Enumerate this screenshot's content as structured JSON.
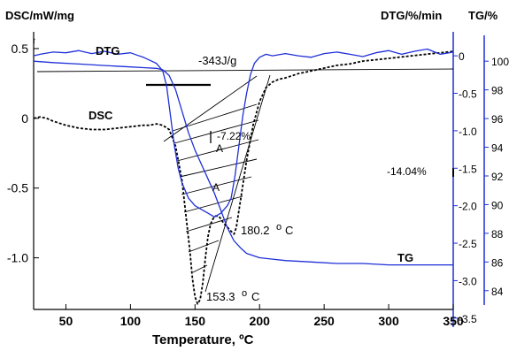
{
  "chart_data": {
    "type": "line",
    "axes": {
      "x": {
        "label": "Temperature, ºC",
        "range": [
          25,
          350
        ],
        "ticks": [
          "50",
          "100",
          "150",
          "200",
          "250",
          "300",
          "350"
        ]
      },
      "y_left": {
        "label": "DSC/mW/mg",
        "range": [
          -1.37,
          0.62
        ],
        "ticks": [
          "0.5",
          "0",
          "-0.5",
          "-1.0"
        ]
      },
      "y_right_dtg": {
        "label": "DTG/%/min",
        "range": [
          -3.62,
          0.32
        ],
        "ticks": [
          "0",
          "-0.5",
          "-1.0",
          "-1.5",
          "-2.0",
          "-2.5",
          "-3.0",
          "-3.5"
        ]
      },
      "y_right_tg": {
        "label": "TG/%",
        "range": [
          83.0,
          101.8
        ],
        "ticks": [
          "100",
          "98",
          "96",
          "94",
          "92",
          "90",
          "88",
          "86",
          "84"
        ]
      }
    },
    "series": [
      {
        "name": "DSC",
        "color": "#000000",
        "axis": "y_left",
        "x": [
          25,
          30,
          35,
          40,
          50,
          60,
          70,
          80,
          90,
          100,
          110,
          115,
          120,
          125,
          130,
          135,
          140,
          143,
          146,
          148,
          150,
          152,
          154,
          156,
          158,
          160,
          162,
          164,
          166,
          168,
          170,
          172,
          175,
          178,
          180.2,
          182,
          185,
          190,
          195,
          200,
          205,
          210,
          215,
          220,
          230,
          240,
          250,
          260,
          270,
          280,
          290,
          300,
          310,
          320,
          330,
          340,
          350
        ],
        "y": [
          0.0,
          0.01,
          0.0,
          -0.02,
          -0.05,
          -0.07,
          -0.08,
          -0.08,
          -0.07,
          -0.06,
          -0.05,
          -0.05,
          -0.04,
          -0.05,
          -0.08,
          -0.2,
          -0.45,
          -0.7,
          -0.95,
          -1.15,
          -1.28,
          -1.33,
          -1.3,
          -1.18,
          -1.0,
          -0.85,
          -0.76,
          -0.72,
          -0.7,
          -0.7,
          -0.72,
          -0.75,
          -0.78,
          -0.81,
          -0.83,
          -0.78,
          -0.6,
          -0.3,
          -0.05,
          0.12,
          0.22,
          0.26,
          0.28,
          0.29,
          0.32,
          0.34,
          0.36,
          0.38,
          0.39,
          0.41,
          0.42,
          0.43,
          0.44,
          0.45,
          0.46,
          0.47,
          0.48
        ]
      },
      {
        "name": "DTG",
        "color": "#1f2fd8",
        "axis": "y_right_dtg",
        "x": [
          25,
          30,
          40,
          50,
          60,
          70,
          80,
          90,
          100,
          105,
          110,
          115,
          120,
          125,
          128,
          131,
          134,
          137,
          140,
          145,
          150,
          155,
          160,
          165,
          170,
          175,
          178,
          181,
          184,
          187,
          190,
          193,
          196,
          200,
          205,
          210,
          220,
          230,
          240,
          250,
          260,
          270,
          280,
          290,
          300,
          310,
          320,
          330,
          340,
          350
        ],
        "y": [
          0.0,
          0.02,
          0.05,
          0.04,
          0.07,
          0.03,
          0.06,
          0.02,
          0.04,
          0.01,
          -0.02,
          -0.06,
          -0.1,
          -0.2,
          -0.4,
          -0.8,
          -1.2,
          -1.5,
          -1.7,
          -1.9,
          -2.0,
          -2.05,
          -2.1,
          -2.15,
          -2.1,
          -2.0,
          -1.9,
          -1.6,
          -1.2,
          -0.8,
          -0.5,
          -0.25,
          -0.1,
          -0.02,
          0.02,
          0.0,
          0.03,
          0.0,
          -0.02,
          0.03,
          0.05,
          0.02,
          -0.01,
          0.04,
          0.07,
          0.02,
          0.06,
          0.09,
          0.02,
          0.05
        ]
      },
      {
        "name": "TG",
        "color": "#1f2fd8",
        "axis": "y_right_tg",
        "x": [
          25,
          40,
          60,
          80,
          100,
          110,
          120,
          125,
          130,
          135,
          140,
          145,
          150,
          155,
          160,
          165,
          170,
          175,
          180,
          185,
          190,
          200,
          210,
          220,
          240,
          260,
          280,
          300,
          320,
          340,
          350
        ],
        "y": [
          100.0,
          99.9,
          99.8,
          99.7,
          99.6,
          99.55,
          99.5,
          99.4,
          99.0,
          98.0,
          96.5,
          95.0,
          93.8,
          92.8,
          91.8,
          90.8,
          89.6,
          88.4,
          87.5,
          87.0,
          86.6,
          86.3,
          86.2,
          86.1,
          86.0,
          85.9,
          85.9,
          85.8,
          85.8,
          85.8,
          85.8
        ]
      }
    ],
    "annotations": [
      {
        "text": "-343J/g"
      },
      {
        "text": "-7.22%"
      },
      {
        "text": "-14.04%"
      },
      {
        "text": "A"
      },
      {
        "text": "A"
      },
      {
        "text": "180.2"
      },
      {
        "text": "153.3"
      },
      {
        "text": "o"
      },
      {
        "text": "o"
      },
      {
        "text": "C"
      },
      {
        "text": "C"
      }
    ],
    "grid": false,
    "legend": "none"
  }
}
